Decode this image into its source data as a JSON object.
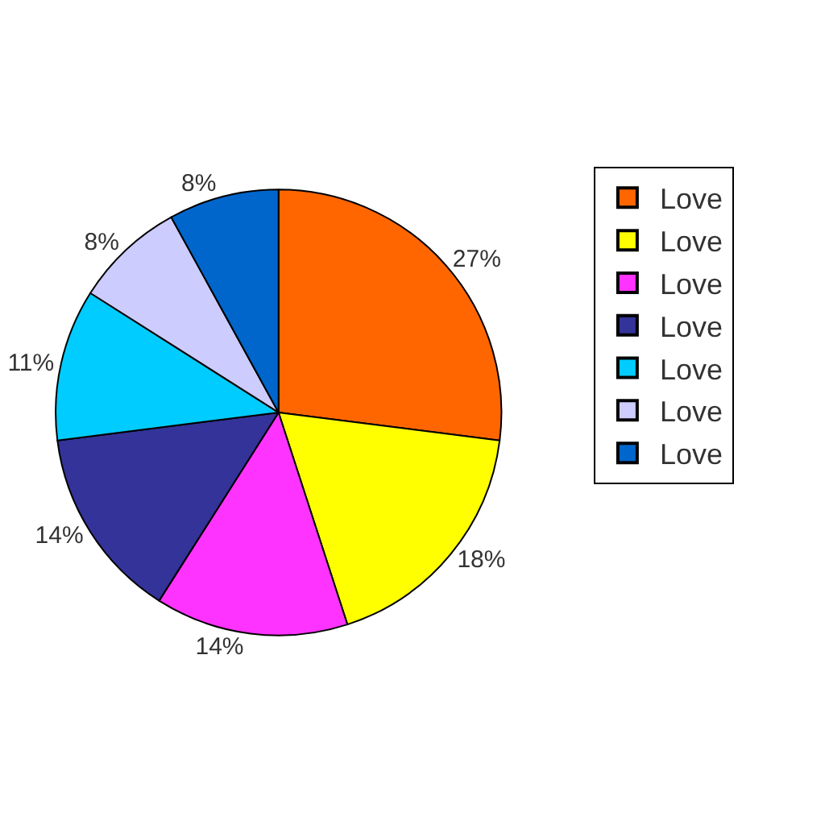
{
  "chart_data": {
    "type": "pie",
    "categories": [
      "Love",
      "Love",
      "Love",
      "Love",
      "Love",
      "Love",
      "Love"
    ],
    "values": [
      27,
      18,
      14,
      14,
      11,
      8,
      8
    ],
    "value_labels": [
      "27%",
      "18%",
      "14%",
      "14%",
      "11%",
      "8%",
      "8%"
    ],
    "colors": [
      "#ff6600",
      "#ffff00",
      "#ff33ff",
      "#333399",
      "#00ccff",
      "#ccccff",
      "#0066cc"
    ],
    "legend": "right"
  }
}
